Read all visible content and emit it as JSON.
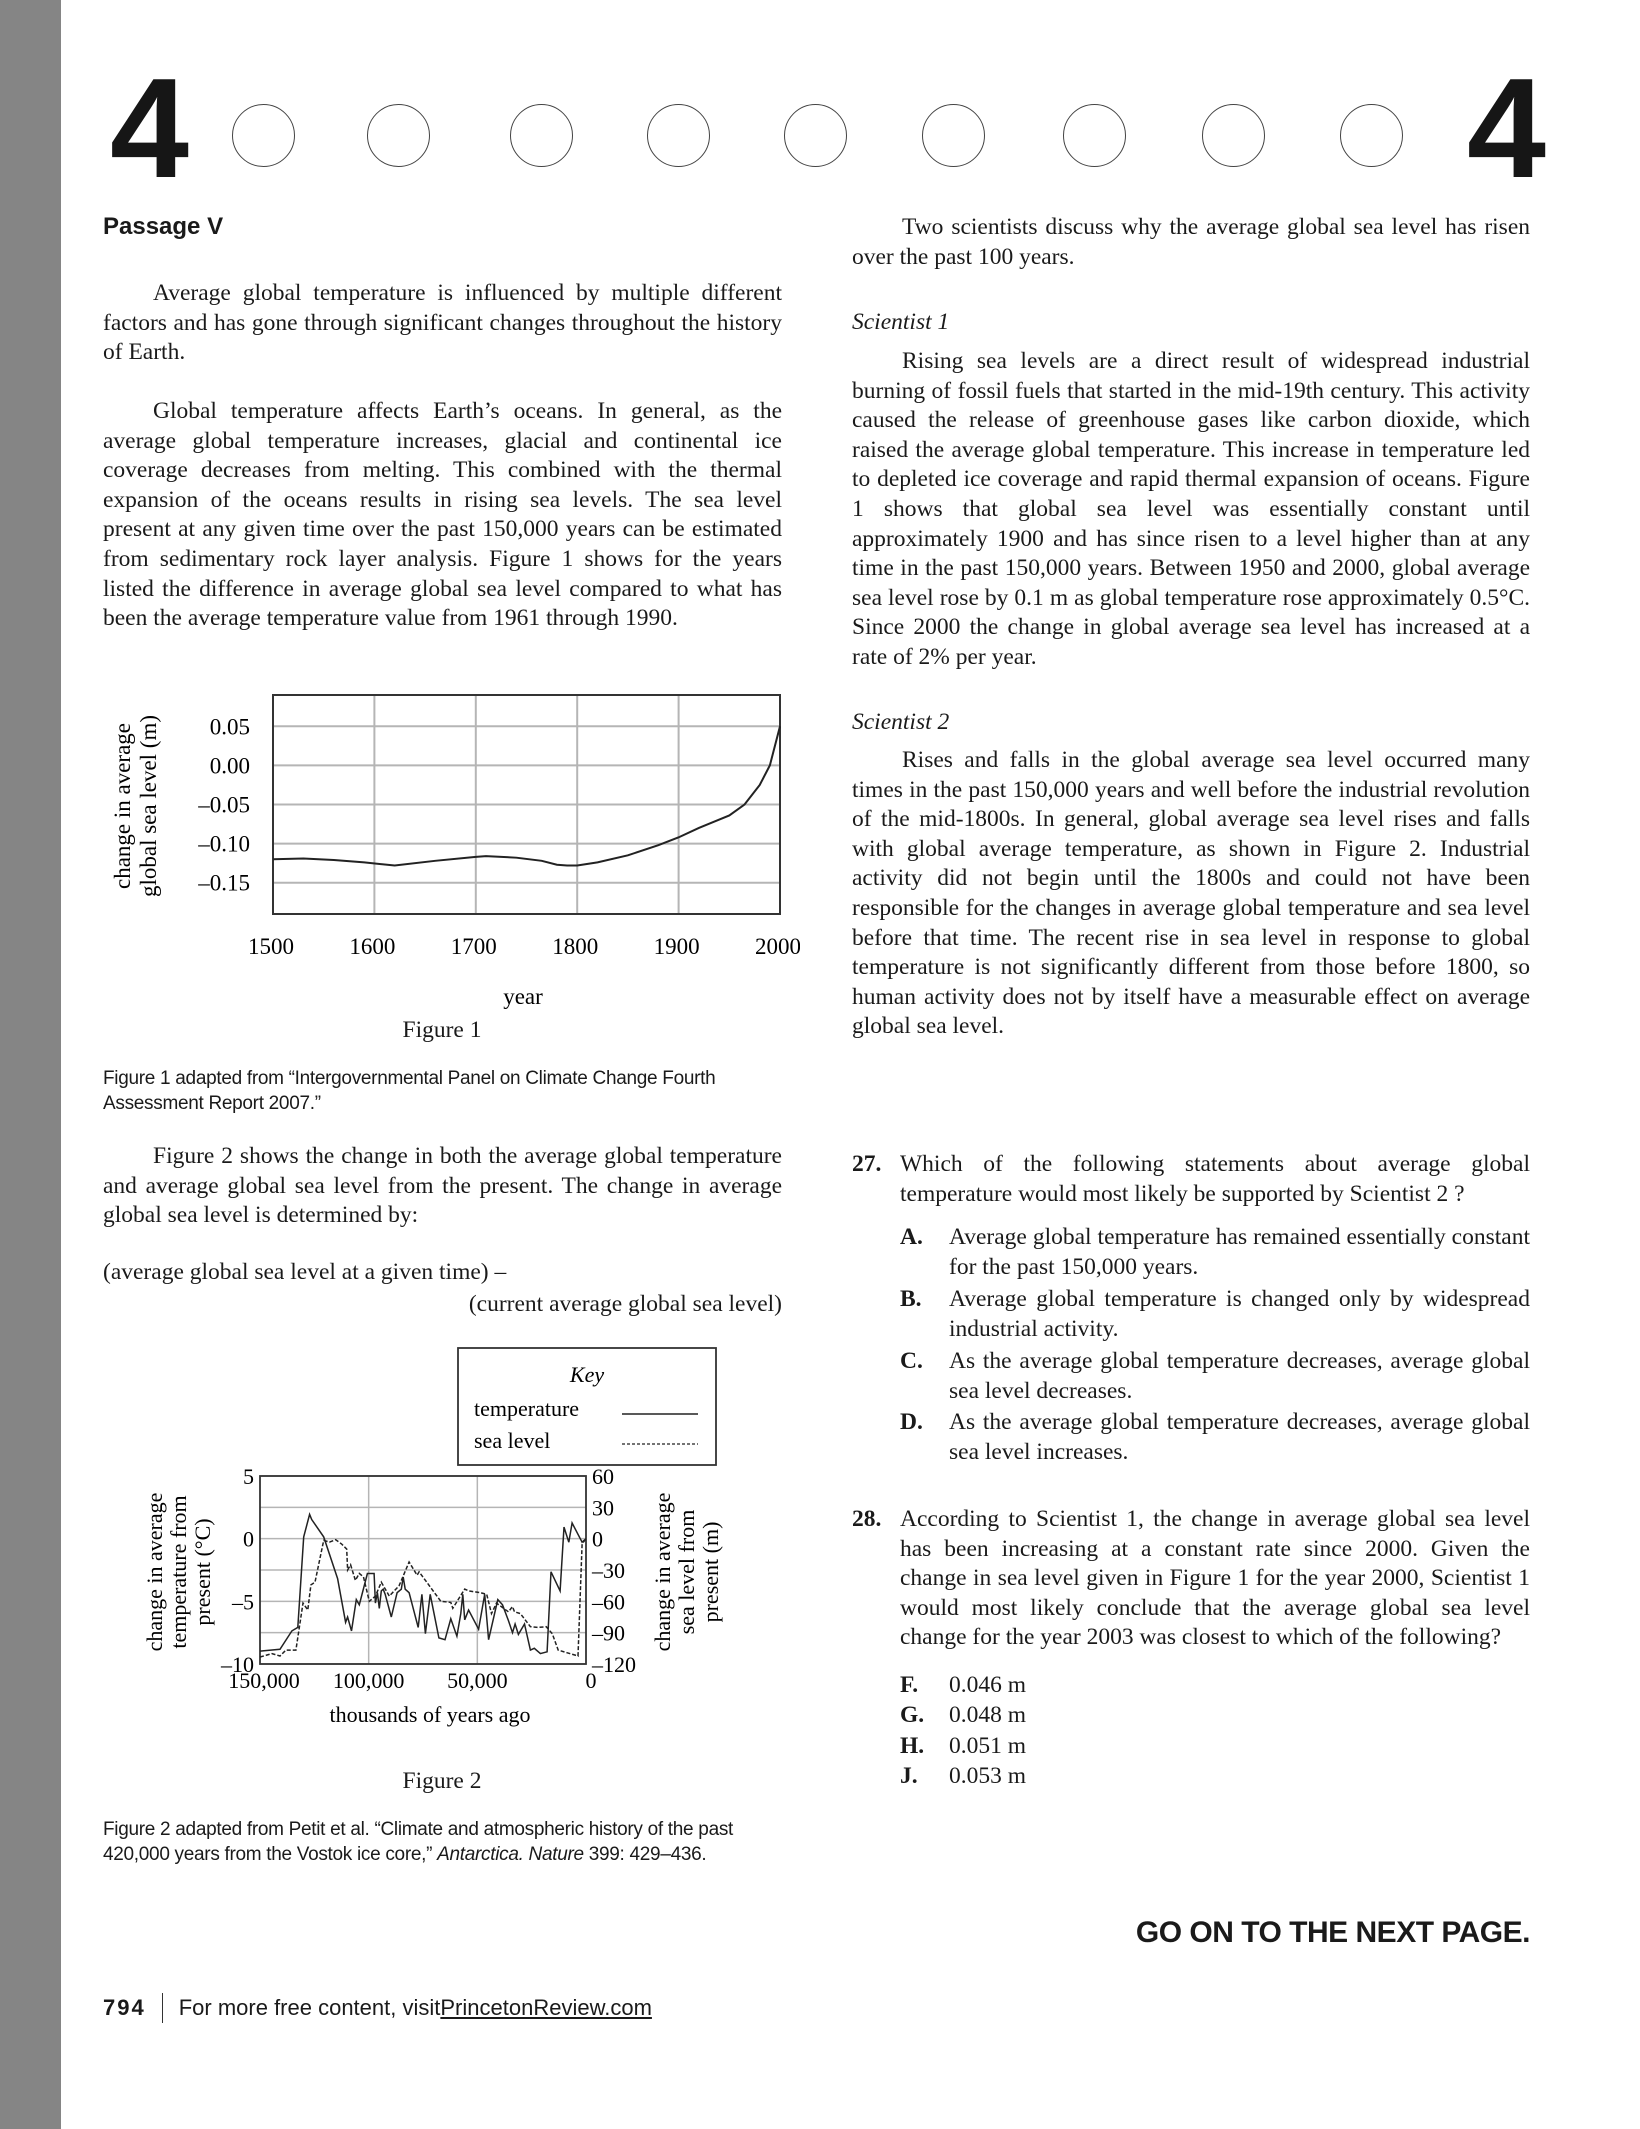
{
  "header": {
    "section_number_left": "4",
    "section_number_right": "4",
    "circle_count": 9
  },
  "passage_title": "Passage V",
  "left": {
    "p1": "Average global temperature is influenced by multiple different factors and has gone through significant changes throughout the history of Earth.",
    "p2": "Global temperature affects Earth’s oceans. In general, as the average global temperature increases, glacial and continental ice coverage decreases from melting. This combined with the thermal expansion of the oceans results in rising sea levels. The sea level present at any given time over the past 150,000 years can be estimated from sedimentary rock layer analysis. Figure 1 shows for the years listed the difference in average global sea level compared to what has been the average temperature value from 1961 through 1990.",
    "figure1_label": "Figure 1",
    "figure1_caption": "Figure 1 adapted from “Intergovernmental Panel on Climate Change Fourth Assessment Report 2007.”",
    "p3": "Figure 2 shows the change in both the average global temperature and average global sea level from the present. The change in average global sea level is determined by:",
    "formula_line1": "(average global sea level at a given time) –",
    "formula_line2": "(current average global sea level)",
    "figure2_label": "Figure 2",
    "figure2_caption_pre": "Figure 2 adapted from Petit et al. “Climate and atmospheric history of the past 420,000 years from the Vostok ice core,” ",
    "figure2_caption_ital": "Antarctica. Nature",
    "figure2_caption_post": " 399: 429–436."
  },
  "right": {
    "intro": "Two scientists discuss why the average global sea level has risen over the past 100 years.",
    "s1_label": "Scientist 1",
    "s1_text": "Rising sea levels are a direct result of widespread industrial burning of fossil fuels that started in the mid-19th century. This activity caused the release of greenhouse gases like carbon dioxide, which raised the average global temperature. This increase in temperature led to depleted ice coverage and rapid thermal expansion of oceans. Figure 1 shows that global sea level was essentially constant until approximately 1900 and has since risen to a level higher than at any time in the past 150,000 years. Between 1950 and 2000, global average sea level rose by 0.1 m as global temperature rose approximately 0.5°C. Since 2000 the change in global average sea level has increased at a rate of 2% per year.",
    "s2_label": "Scientist 2",
    "s2_text": "Rises and falls in the global average sea level occurred many times in the past 150,000 years and well before the industrial revolution of the mid-1800s. In general, global average sea level rises and falls with global average temperature, as shown in Figure 2. Industrial activity did not begin until the 1800s and could not have been responsible for the changes in average global temperature and sea level before that time. The recent rise in sea level in response to global temperature is not significantly different from those before 1800, so human activity does not by itself have a measurable effect on average global sea level."
  },
  "questions": [
    {
      "number": "27.",
      "text": "Which of the following statements about average global temperature would most likely be supported by Scientist 2 ?",
      "options": [
        {
          "letter": "A.",
          "text": "Average global temperature has remained essentially constant for the past 150,000 years."
        },
        {
          "letter": "B.",
          "text": "Average global temperature is changed only by widespread industrial activity."
        },
        {
          "letter": "C.",
          "text": "As the average global temperature decreases, average global sea level decreases."
        },
        {
          "letter": "D.",
          "text": "As the average global temperature decreases, average global sea level increases."
        }
      ]
    },
    {
      "number": "28.",
      "text": "According to Scientist 1, the change in average global sea level has been increasing at a constant rate since 2000. Given the change in sea level given in Figure 1 for the year 2000, Scientist 1 would most likely conclude that the average global sea level change for the year 2003 was closest to which of the following?",
      "options": [
        {
          "letter": "F.",
          "text": "0.046 m"
        },
        {
          "letter": "G.",
          "text": "0.048 m"
        },
        {
          "letter": "H.",
          "text": "0.051 m"
        },
        {
          "letter": "J.",
          "text": "0.053 m"
        }
      ]
    }
  ],
  "go_on": "GO ON TO THE NEXT PAGE.",
  "footer": {
    "page_number": "794",
    "text": "For more free content, visit ",
    "link": "PrincetonReview.com"
  },
  "chart_data": [
    {
      "type": "line",
      "xlabel": "year",
      "ylabel": "change in average global sea level (m)",
      "xticks": [
        1500,
        1600,
        1700,
        1800,
        1900,
        2000
      ],
      "yticks": [
        "0.05",
        "0.00",
        "–0.05",
        "–0.10",
        "–0.15"
      ],
      "ytick_values": [
        0.05,
        0.0,
        -0.05,
        -0.1,
        -0.15
      ],
      "xlim": [
        1500,
        2000
      ],
      "ylim": [
        -0.19,
        0.09
      ],
      "grid": true,
      "series": [
        {
          "x": [
            1500,
            1530,
            1560,
            1590,
            1620,
            1660,
            1700,
            1710,
            1740,
            1765,
            1780,
            1790,
            1800,
            1820,
            1850,
            1880,
            1900,
            1920,
            1935,
            1950,
            1965,
            1980,
            1990,
            2000
          ],
          "y": [
            -0.12,
            -0.119,
            -0.121,
            -0.124,
            -0.128,
            -0.122,
            -0.117,
            -0.116,
            -0.118,
            -0.122,
            -0.127,
            -0.128,
            -0.128,
            -0.124,
            -0.115,
            -0.102,
            -0.092,
            -0.08,
            -0.072,
            -0.064,
            -0.05,
            -0.025,
            0.0,
            0.05
          ]
        }
      ]
    },
    {
      "type": "line",
      "xlabel": "thousands of years ago",
      "ylabel_left": "change in average temperature from present (°C)",
      "ylabel_right": "change in average sea level from present (m)",
      "xticks": [
        "150,000",
        "100,000",
        "50,000",
        "0"
      ],
      "xtick_values": [
        150,
        100,
        50,
        0
      ],
      "yticks_left": [
        "5",
        "0",
        "–5",
        "–10"
      ],
      "ytick_left_values": [
        5,
        0,
        -5,
        -10
      ],
      "yticks_right": [
        "60",
        "30",
        "0",
        "–30",
        "–60",
        "–90",
        "–120"
      ],
      "ytick_right_values": [
        60,
        30,
        0,
        -30,
        -60,
        -90,
        -120
      ],
      "xlim": [
        150,
        0
      ],
      "ylim_left": [
        -10,
        5
      ],
      "ylim_right": [
        -120,
        60
      ],
      "grid": true,
      "legend": {
        "title": "Key",
        "placement": "top-right",
        "entries": [
          "temperature",
          "sea level"
        ]
      },
      "series": [
        {
          "name": "temperature",
          "style": "solid",
          "axis": "left",
          "x": [
            150,
            140.8,
            135.3,
            132.6,
            129.9,
            127.2,
            126.2,
            120.7,
            114.3,
            110.6,
            109.7,
            107.9,
            105.7,
            104.3,
            100.6,
            97.5,
            96.9,
            96.0,
            95.1,
            94.2,
            93.3,
            92.4,
            89.6,
            86.9,
            85.0,
            84.1,
            83.2,
            81.4,
            77.2,
            75.5,
            73.9,
            71.7,
            67.7,
            64.9,
            62.2,
            59.4,
            57.6,
            56.7,
            55.8,
            54.0,
            49.4,
            46.6,
            44.8,
            40.6,
            38.4,
            35.7,
            33.8,
            32.6,
            31.1,
            28.3,
            25.6,
            23.8,
            21.0,
            17.9,
            16.1,
            11.9,
            10.1,
            7.9,
            6.4,
            1.8,
            0
          ],
          "y": [
            -8.97,
            -8.83,
            -7.36,
            -7.08,
            0.14,
            1.94,
            1.53,
            0.14,
            -3.19,
            -6.67,
            -6.25,
            -7.36,
            -4.86,
            -5.28,
            -2.78,
            -2.78,
            -5.14,
            -4.31,
            -5.56,
            -4.17,
            -4.03,
            -4.44,
            -6.25,
            -4.31,
            -4.03,
            -3.06,
            -4.03,
            -4.31,
            -7.08,
            -4.44,
            -7.58,
            -4.44,
            -7.92,
            -8.06,
            -6.39,
            -7.78,
            -5.97,
            -4.44,
            -6.47,
            -5.69,
            -7.22,
            -4.44,
            -8.06,
            -4.86,
            -5.28,
            -6.53,
            -7.5,
            -6.81,
            -7.64,
            -6.81,
            -8.89,
            -8.75,
            -9.17,
            -9.03,
            -2.64,
            -4.17,
            0.92,
            -0.28,
            1.25,
            -0.28,
            0.0
          ]
        },
        {
          "name": "sea level",
          "style": "dashed",
          "axis": "right",
          "x": [
            150,
            144.5,
            140.8,
            138.1,
            133.5,
            130.2,
            128.0,
            126.6,
            124.7,
            120.7,
            118.0,
            115.2,
            112.5,
            110.1,
            109.7,
            108.3,
            106.1,
            104.3,
            102.4,
            99.7,
            96.9,
            94.2,
            90.5,
            86.0,
            81.4,
            77.7,
            76.8,
            66.8,
            62.2,
            61.3,
            55.8,
            54.0,
            48.5,
            45.7,
            43.5,
            41.2,
            35.7,
            33.8,
            32.9,
            30.2,
            25.6,
            21.9,
            18.3,
            15.5,
            12.8,
            3.7,
            1.8,
            0
          ],
          "y": [
            -113.3,
            -110,
            -112.3,
            -106.7,
            -106.7,
            -61.7,
            -68.3,
            -44.3,
            -41.7,
            -1.7,
            -3.3,
            -1.0,
            -5.0,
            -10.0,
            -30.0,
            -25.0,
            -40.0,
            -33.3,
            -36.7,
            -60.0,
            -55.0,
            -41.7,
            -55.0,
            -45.0,
            -22.3,
            -35.0,
            -31.7,
            -60.0,
            -61.0,
            -66.7,
            -48.3,
            -50.0,
            -51.7,
            -53.3,
            -71.7,
            -61.7,
            -70.0,
            -65.0,
            -70.0,
            -71.7,
            -84.3,
            -85.0,
            -84.3,
            -91.0,
            -106.7,
            -112.3,
            -5.0,
            0.0
          ]
        }
      ]
    }
  ]
}
